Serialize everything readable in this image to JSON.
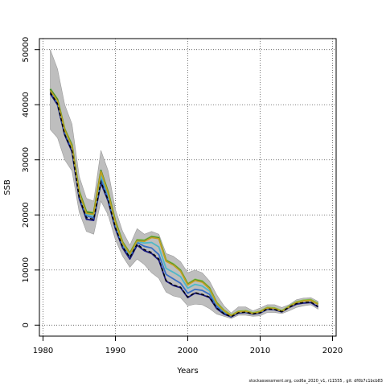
{
  "chart_data": {
    "type": "line",
    "xlabel": "Years",
    "ylabel": "SSB",
    "xlim": [
      1979.5,
      2020.5
    ],
    "ylim": [
      -2000,
      52000
    ],
    "xticks": [
      1980,
      1990,
      2000,
      2010,
      2020
    ],
    "yticks": [
      0,
      10000,
      20000,
      30000,
      40000,
      50000
    ],
    "grid": true,
    "legend": "none",
    "colors": {
      "band": "#bebebe",
      "series": [
        "#1a1a80",
        "#3a6fc4",
        "#4fb8c8",
        "#8bc34a",
        "#2e7d32",
        "#c0a020"
      ],
      "estimate": "#000000"
    },
    "confidence_band": {
      "x": [
        1981,
        1982,
        1983,
        1984,
        1985,
        1986,
        1987,
        1988,
        1989,
        1990,
        1991,
        1992,
        1993,
        1994,
        1995,
        1996,
        1997,
        1998,
        1999,
        2000,
        2001,
        2002,
        2003,
        2004,
        2005,
        2006,
        2007,
        2008,
        2009,
        2010,
        2011,
        2012,
        2013,
        2014,
        2015,
        2016,
        2017,
        2018
      ],
      "lower": [
        35500,
        34000,
        30000,
        28000,
        20500,
        17000,
        16500,
        22500,
        20000,
        15500,
        12500,
        10500,
        12000,
        11000,
        9500,
        8500,
        6000,
        5300,
        5000,
        3500,
        3800,
        3700,
        3000,
        2000,
        1600,
        1200,
        1800,
        1800,
        1600,
        1700,
        2300,
        2300,
        2100,
        2600,
        3200,
        3500,
        3700,
        2900
      ],
      "upper": [
        50000,
        46500,
        40000,
        36500,
        27000,
        23000,
        22500,
        31700,
        28000,
        21000,
        17000,
        14500,
        17500,
        16500,
        17000,
        16500,
        13000,
        12500,
        11500,
        9500,
        10000,
        9500,
        8000,
        5500,
        3500,
        2200,
        3300,
        3300,
        2600,
        3100,
        3700,
        3700,
        3200,
        3700,
        4600,
        4900,
        5000,
        4300
      ]
    },
    "series": [
      {
        "values": [
          42000,
          40000,
          34500,
          31500,
          23000,
          19200,
          19000,
          25800,
          22500,
          17500,
          14000,
          12000,
          14500,
          13500,
          13000,
          11800,
          8000,
          7200,
          6800,
          5000,
          5800,
          5500,
          5000,
          3000,
          2000,
          1500,
          2200,
          2300,
          2000,
          2200,
          2900,
          2800,
          2400,
          3200,
          3800,
          4000,
          4100,
          3300
        ]
      },
      {
        "values": [
          42500,
          40300,
          35000,
          32000,
          23500,
          19800,
          19500,
          26500,
          23000,
          18000,
          14400,
          12500,
          15000,
          14300,
          14000,
          12800,
          9200,
          8400,
          7600,
          5800,
          6500,
          6300,
          5600,
          3400,
          2300,
          1600,
          2300,
          2400,
          2100,
          2300,
          3000,
          2900,
          2500,
          3300,
          4000,
          4400,
          4500,
          3800
        ]
      },
      {
        "values": [
          42700,
          40600,
          35300,
          32300,
          23800,
          20100,
          19900,
          27200,
          23600,
          18400,
          14700,
          12800,
          15200,
          14900,
          15000,
          14200,
          10300,
          9600,
          8800,
          6700,
          7400,
          7100,
          6200,
          3800,
          2500,
          1700,
          2400,
          2500,
          2100,
          2400,
          3100,
          3000,
          2500,
          3400,
          4200,
          4500,
          4600,
          3900
        ]
      },
      {
        "values": [
          42900,
          41000,
          35600,
          32700,
          24300,
          20600,
          20400,
          28000,
          24200,
          18900,
          15100,
          13100,
          15500,
          15400,
          16100,
          15900,
          11800,
          11100,
          10000,
          7500,
          8300,
          8000,
          6800,
          4100,
          2700,
          1800,
          2500,
          2600,
          2200,
          2500,
          3200,
          3100,
          2600,
          3400,
          4200,
          4500,
          4600,
          3900
        ]
      },
      {
        "values": [
          42800,
          40900,
          35500,
          32600,
          24200,
          20500,
          20300,
          28100,
          24100,
          18800,
          15000,
          13000,
          15400,
          15300,
          16000,
          15800,
          11700,
          11000,
          9900,
          7400,
          8200,
          7900,
          6700,
          4000,
          2600,
          1700,
          2400,
          2500,
          2100,
          2400,
          3100,
          3000,
          2500,
          3300,
          4100,
          4400,
          4500,
          3800
        ]
      },
      {
        "values": [
          42600,
          40700,
          35400,
          32400,
          24000,
          20300,
          20100,
          27900,
          23900,
          18600,
          14900,
          12900,
          15300,
          15200,
          15900,
          15700,
          11600,
          10900,
          9800,
          7300,
          8100,
          7800,
          6600,
          3900,
          2600,
          1700,
          2400,
          2500,
          2100,
          2400,
          3100,
          3000,
          2500,
          3300,
          4100,
          4400,
          4500,
          3800
        ]
      }
    ],
    "estimate": {
      "values": [
        42200,
        40200,
        34600,
        31700,
        23200,
        19500,
        19200,
        26000,
        22700,
        17700,
        14200,
        12300,
        14700,
        13700,
        13200,
        12000,
        8100,
        7300,
        6900,
        5100,
        5900,
        5600,
        5100,
        3100,
        2100,
        1550,
        2250,
        2350,
        2050,
        2250,
        2950,
        2850,
        2450,
        3250,
        3900,
        4100,
        4200,
        3400
      ]
    }
  },
  "footer": "stockassessment.org, cod6a_2020_v1, r11555 , git: df0b7c1bcb83"
}
